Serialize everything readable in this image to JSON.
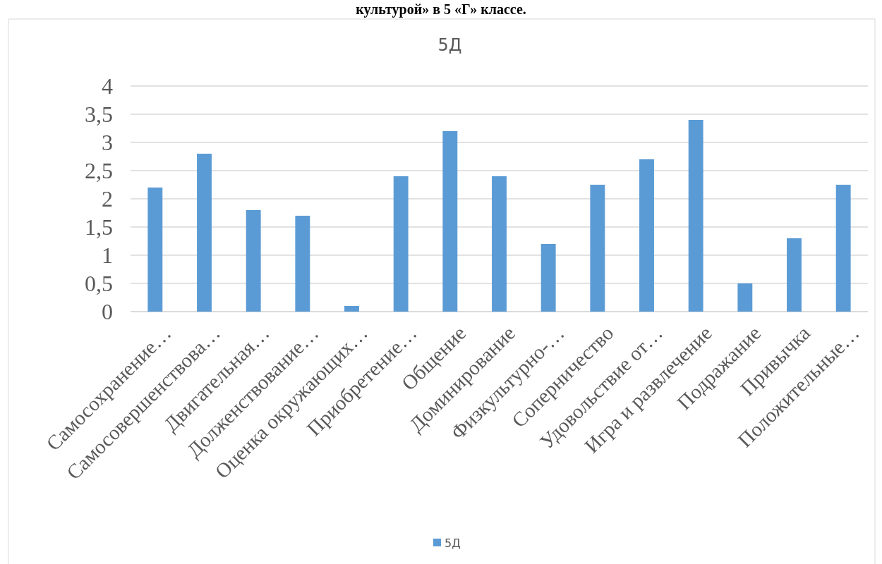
{
  "chart_data": {
    "type": "bar",
    "title": "5Д",
    "annotations": [
      "культурой» в 5 «Г» классе."
    ],
    "categories": [
      "Самосохранение…",
      "Самосовершенствова…",
      "Двигательная…",
      "Долженствование…",
      "Оценка окружающих…",
      "Приобретение…",
      "Общение",
      "Доминирование",
      "Физкультурно-…",
      "Соперничество",
      "Удовольствие от…",
      "Игра и развлечение",
      "Подражание",
      "Привычка",
      "Положительные…"
    ],
    "series": [
      {
        "name": "5Д",
        "color": "#5b9bd5",
        "values": [
          2.2,
          2.8,
          1.8,
          1.7,
          0.1,
          2.4,
          3.2,
          2.4,
          1.2,
          2.25,
          2.7,
          3.4,
          0.5,
          1.3,
          2.25
        ]
      }
    ],
    "ylim": [
      0,
      4
    ],
    "yticks": [
      0,
      {
        "value": 0.5,
        "label": "0,5"
      },
      1,
      {
        "value": 1.5,
        "label": "1,5"
      },
      2,
      {
        "value": 2.5,
        "label": "2,5"
      },
      3,
      {
        "value": 3.5,
        "label": "3,5"
      },
      4
    ],
    "grid": "y",
    "legend": "bottom"
  }
}
